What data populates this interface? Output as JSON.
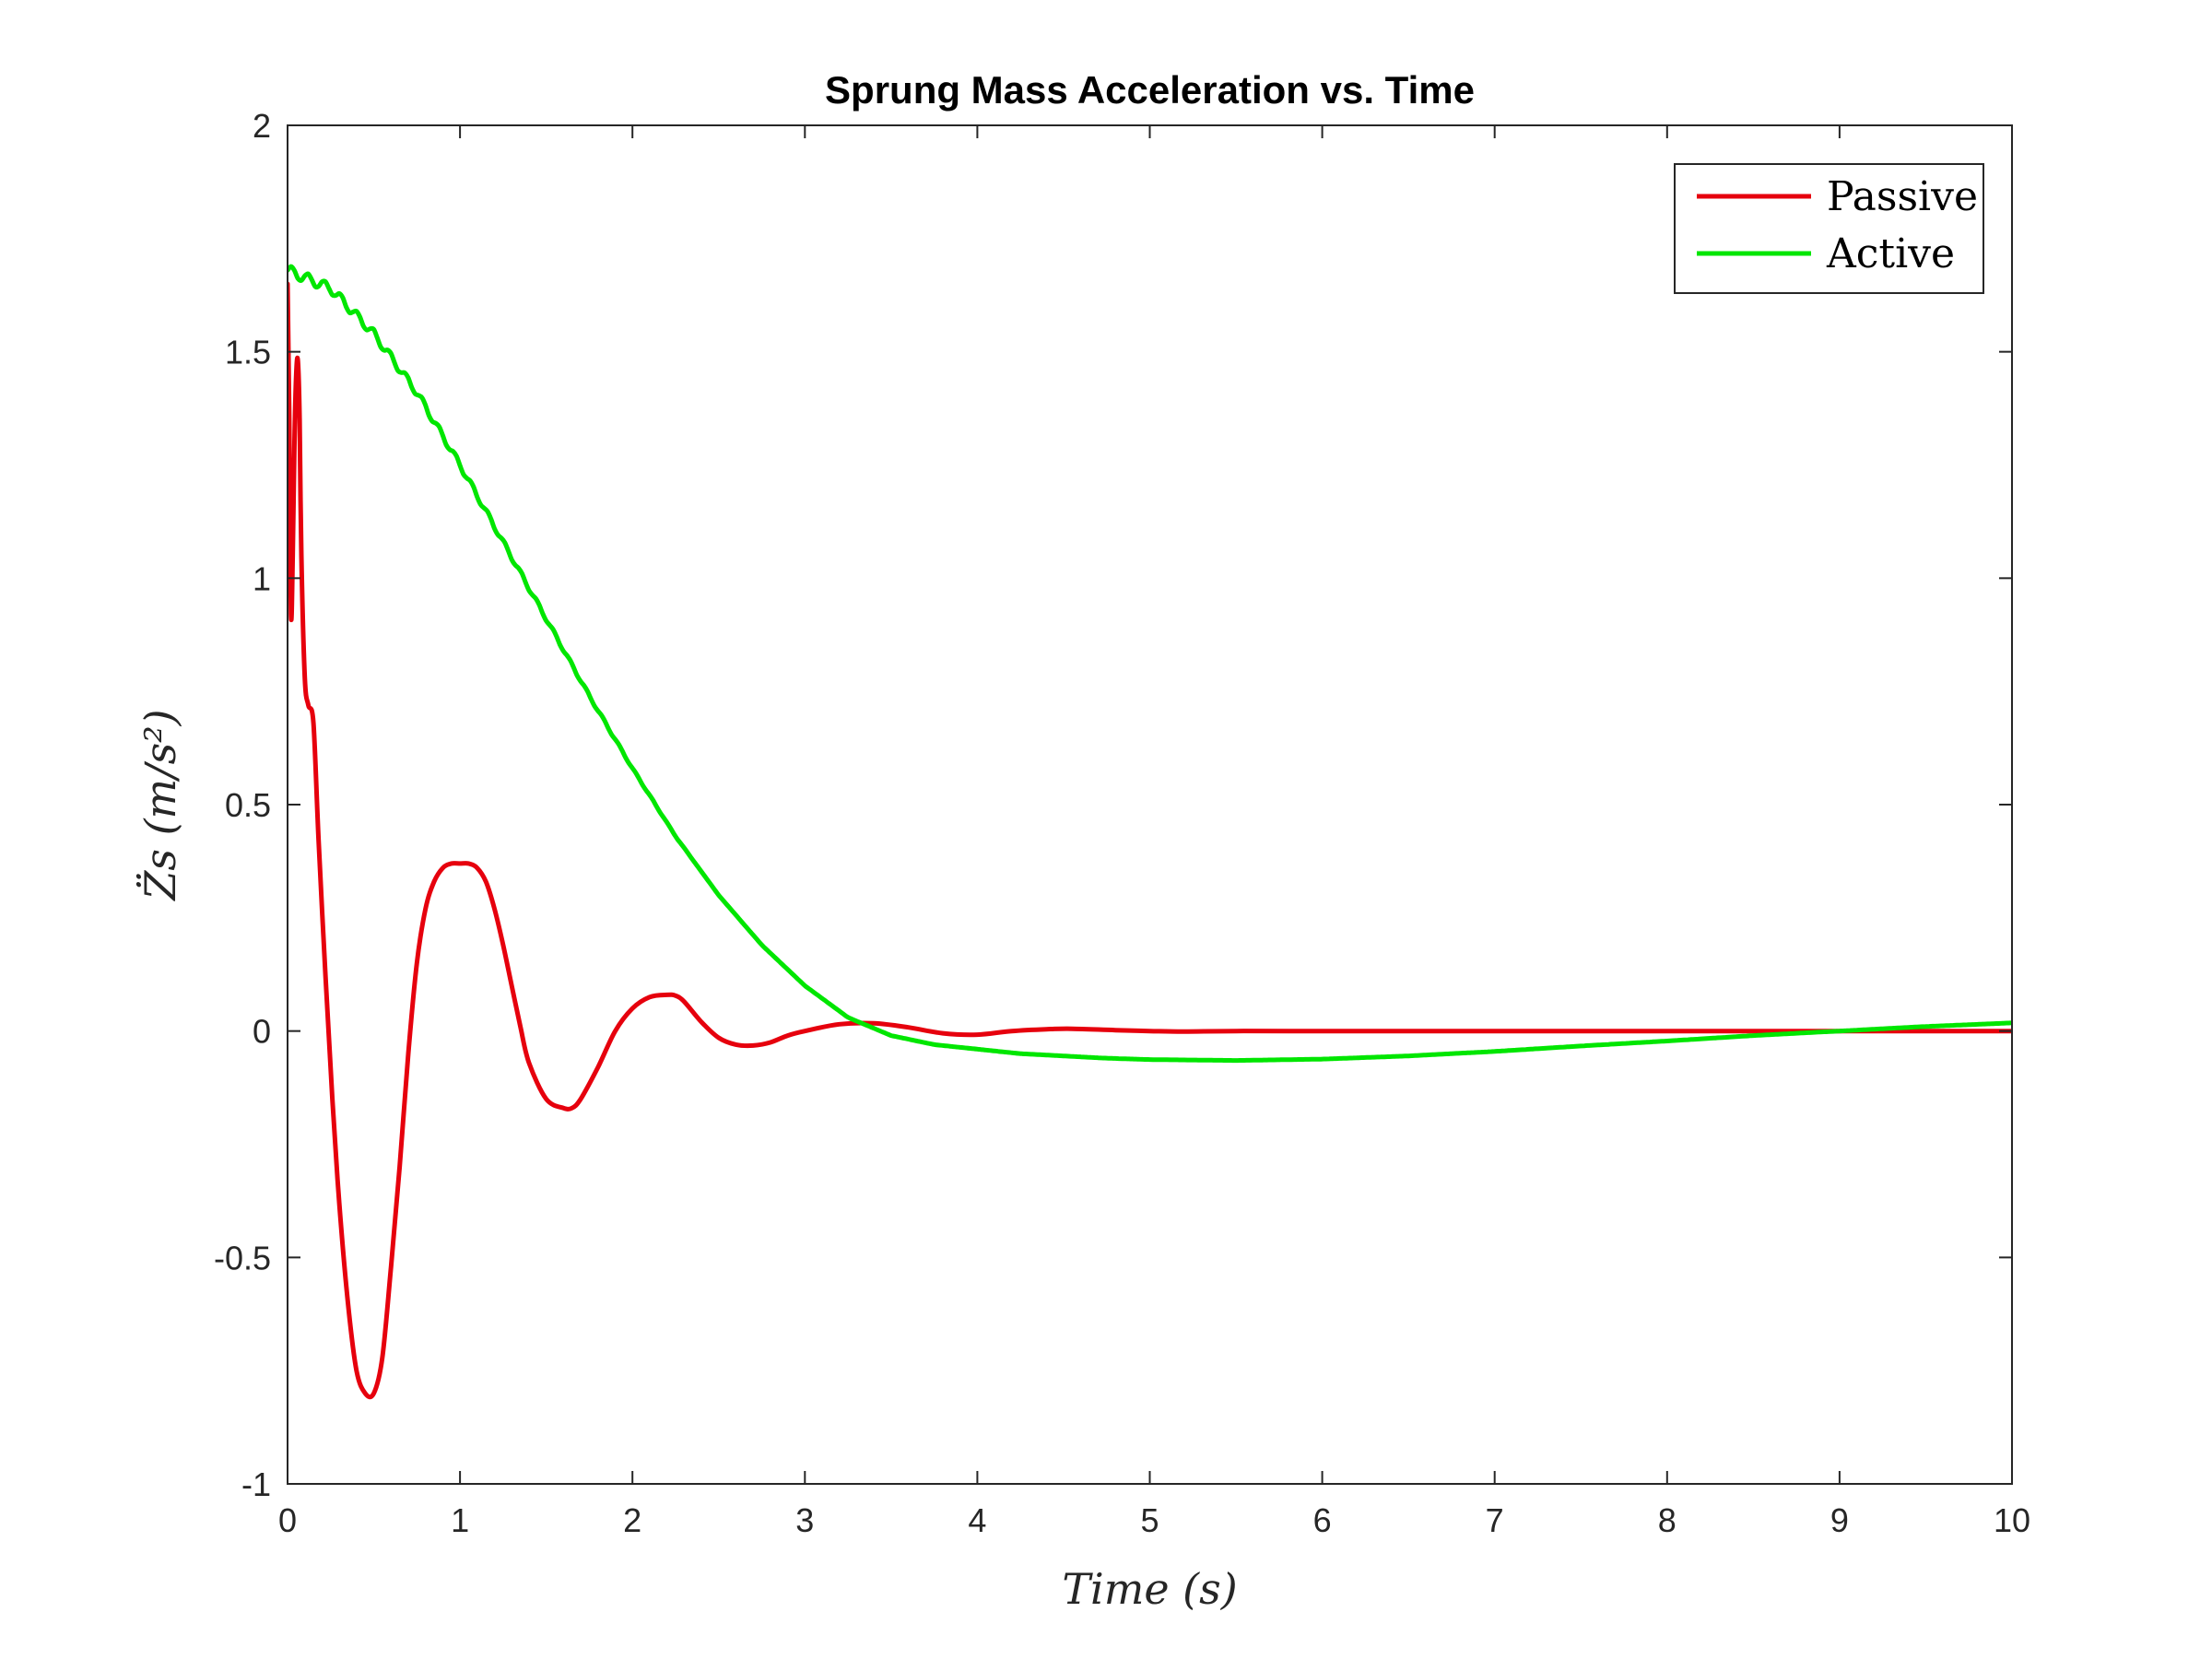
{
  "chart_data": {
    "type": "line",
    "title": "Sprung Mass Acceleration vs. Time",
    "xlabel": "Time (s)",
    "ylabel": "Z̈s (m/s²)",
    "xlim": [
      0,
      10
    ],
    "ylim": [
      -1,
      2
    ],
    "xticks": [
      0,
      1,
      2,
      3,
      4,
      5,
      6,
      7,
      8,
      9,
      10
    ],
    "yticks": [
      -1,
      -0.5,
      0,
      0.5,
      1,
      1.5,
      2
    ],
    "xtick_labels": [
      "0",
      "1",
      "2",
      "3",
      "4",
      "5",
      "6",
      "7",
      "8",
      "9",
      "10"
    ],
    "ytick_labels": [
      "-1",
      "-0.5",
      "0",
      "0.5",
      "1",
      "1.5",
      "2"
    ],
    "grid": false,
    "legend_position": "top-right",
    "series": [
      {
        "name": "Passive",
        "color": "#e6000d",
        "x": [
          0,
          0.01,
          0.02,
          0.03,
          0.04,
          0.05,
          0.06,
          0.07,
          0.08,
          0.1,
          0.12,
          0.15,
          0.18,
          0.22,
          0.26,
          0.3,
          0.35,
          0.4,
          0.45,
          0.5,
          0.55,
          0.6,
          0.65,
          0.7,
          0.75,
          0.8,
          0.85,
          0.9,
          0.95,
          1.0,
          1.05,
          1.1,
          1.15,
          1.2,
          1.25,
          1.3,
          1.35,
          1.4,
          1.5,
          1.6,
          1.65,
          1.7,
          1.8,
          1.9,
          2.0,
          2.1,
          2.2,
          2.25,
          2.3,
          2.4,
          2.5,
          2.6,
          2.7,
          2.8,
          2.9,
          3.0,
          3.2,
          3.4,
          3.6,
          3.8,
          4.0,
          4.2,
          4.4,
          4.55,
          4.8,
          5.0,
          5.2,
          5.5,
          6.0,
          7.0,
          8.0,
          9.0,
          10.0
        ],
        "y": [
          1.65,
          1.35,
          0.92,
          1.05,
          1.3,
          1.45,
          1.48,
          1.35,
          1.05,
          0.78,
          0.72,
          0.68,
          0.42,
          0.12,
          -0.15,
          -0.38,
          -0.6,
          -0.75,
          -0.8,
          -0.8,
          -0.72,
          -0.52,
          -0.3,
          -0.05,
          0.15,
          0.27,
          0.33,
          0.36,
          0.37,
          0.37,
          0.37,
          0.36,
          0.33,
          0.27,
          0.19,
          0.1,
          0.01,
          -0.07,
          -0.15,
          -0.17,
          -0.17,
          -0.15,
          -0.08,
          0.0,
          0.05,
          0.075,
          0.08,
          0.078,
          0.065,
          0.02,
          -0.015,
          -0.03,
          -0.032,
          -0.025,
          -0.01,
          0.0,
          0.015,
          0.017,
          0.008,
          -0.005,
          -0.008,
          0.0,
          0.004,
          0.005,
          0.002,
          0.0,
          -0.001,
          0.0,
          0.0,
          0.0,
          0.0,
          0.0,
          0.0
        ]
      },
      {
        "name": "Active",
        "color": "#00e600",
        "x": [
          0,
          0.25,
          0.5,
          0.75,
          1.0,
          1.25,
          1.5,
          1.75,
          2.0,
          2.25,
          2.5,
          2.75,
          3.0,
          3.25,
          3.5,
          3.75,
          4.0,
          4.25,
          4.5,
          4.75,
          5.0,
          5.5,
          6.0,
          6.5,
          7.0,
          7.5,
          8.0,
          8.5,
          9.0,
          9.5,
          10.0
        ],
        "y": [
          1.68,
          1.64,
          1.54,
          1.41,
          1.25,
          1.08,
          0.91,
          0.74,
          0.58,
          0.43,
          0.3,
          0.19,
          0.1,
          0.03,
          -0.01,
          -0.03,
          -0.04,
          -0.05,
          -0.055,
          -0.06,
          -0.063,
          -0.065,
          -0.062,
          -0.055,
          -0.045,
          -0.033,
          -0.022,
          -0.01,
          0.0,
          0.01,
          0.018
        ],
        "ripple": {
          "amplitude": 0.012,
          "period": 0.095,
          "decay_until": 2.4
        }
      }
    ]
  }
}
